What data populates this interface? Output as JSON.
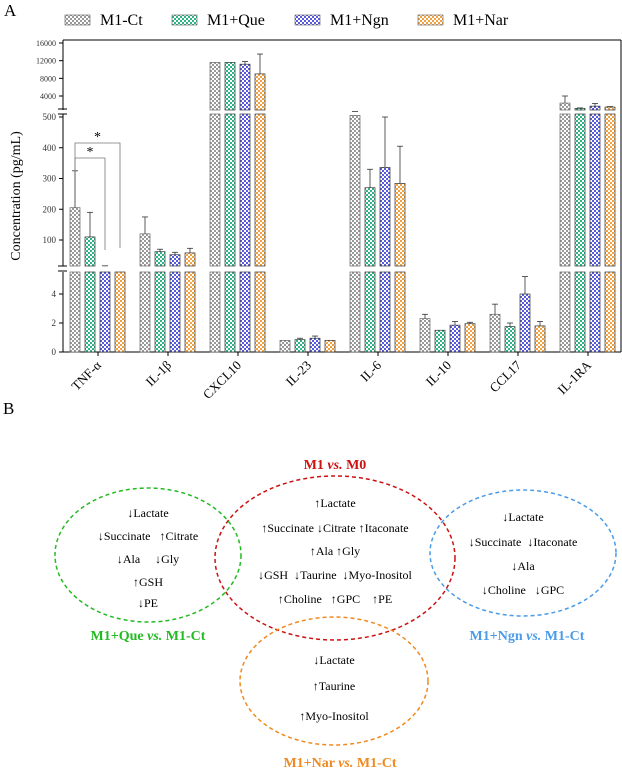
{
  "panel_a_label": "A",
  "panel_b_label": "B",
  "chart_data": {
    "type": "bar",
    "ylabel": "Concentration (pg/mL)",
    "xlabel": "",
    "categories": [
      "TNF-α",
      "IL-1β",
      "CXCL10",
      "IL-23",
      "IL-6",
      "IL-10",
      "CCL17",
      "IL-1RA"
    ],
    "series": [
      {
        "name": "M1-Ct",
        "color": "#9a9a9a",
        "values": [
          205,
          120,
          11600,
          0.8,
          505,
          2.3,
          2.6,
          2400
        ],
        "errors": [
          325,
          175,
          11600,
          0.8,
          515,
          2.6,
          3.3,
          4000
        ]
      },
      {
        "name": "M1+Que",
        "color": "#2db585",
        "values": [
          110,
          62,
          11600,
          0.85,
          270,
          1.5,
          1.75,
          1200
        ],
        "errors": [
          190,
          70,
          11600,
          0.95,
          330,
          1.5,
          2.0,
          1300
        ]
      },
      {
        "name": "M1+Ngn",
        "color": "#5a5ae0",
        "values": [
          15,
          52,
          11200,
          0.95,
          336,
          1.85,
          4.0,
          1700
        ],
        "errors": [
          16,
          60,
          11800,
          1.1,
          500,
          2.1,
          5.2,
          2300
        ]
      },
      {
        "name": "M1+Nar",
        "color": "#f2a040",
        "values": [
          13,
          58,
          9000,
          0.8,
          284,
          1.95,
          1.8,
          1500
        ],
        "errors": [
          13,
          73,
          13500,
          0.8,
          405,
          2.05,
          2.1,
          1600
        ]
      }
    ],
    "axis_segments": [
      {
        "range": [
          0,
          5.5
        ],
        "ticks": [
          0,
          2,
          4
        ]
      },
      {
        "range": [
          16,
          500
        ],
        "ticks": [
          100,
          200,
          300,
          400,
          500
        ]
      },
      {
        "range": [
          800,
          16500
        ],
        "ticks": [
          4000,
          8000,
          12000,
          16000
        ]
      }
    ],
    "annotations": [
      {
        "text": "*",
        "from": "M1-Ct",
        "to": "M1+Ngn",
        "category": "TNF-α"
      },
      {
        "text": "*",
        "from": "M1-Ct",
        "to": "M1+Nar",
        "category": "TNF-α"
      }
    ],
    "legend_position": "top",
    "grid": false
  },
  "venn": {
    "groups": [
      {
        "key": "red",
        "title_parts": [
          "M1 ",
          "vs.",
          " M0"
        ],
        "color": "#cc1111",
        "lines": [
          "↑Lactate",
          "↑Succinate ↓Citrate ↑Itaconate",
          "↑Ala ↑Gly",
          "↓GSH  ↓Taurine  ↓Myo-Inositol",
          "↑Choline   ↑GPC    ↑PE"
        ]
      },
      {
        "key": "green",
        "title_parts": [
          "M1+Que ",
          "vs.",
          " M1-Ct"
        ],
        "color": "#22bb22",
        "lines": [
          "↓Lactate",
          "↓Succinate   ↑Citrate",
          "↓Ala     ↓Gly",
          "↑GSH",
          "↓PE"
        ]
      },
      {
        "key": "blue",
        "title_parts": [
          "M1+Ngn ",
          "vs.",
          " M1-Ct"
        ],
        "color": "#4a9be8",
        "lines": [
          "↓Lactate",
          "↓Succinate  ↓Itaconate",
          "↓Ala",
          "↓Choline   ↓GPC"
        ]
      },
      {
        "key": "orange",
        "title_parts": [
          "M1+Nar ",
          "vs.",
          " M1-Ct"
        ],
        "color": "#f08a20",
        "lines": [
          "↓Lactate",
          "↑Taurine",
          "↑Myo-Inositol"
        ]
      }
    ]
  }
}
